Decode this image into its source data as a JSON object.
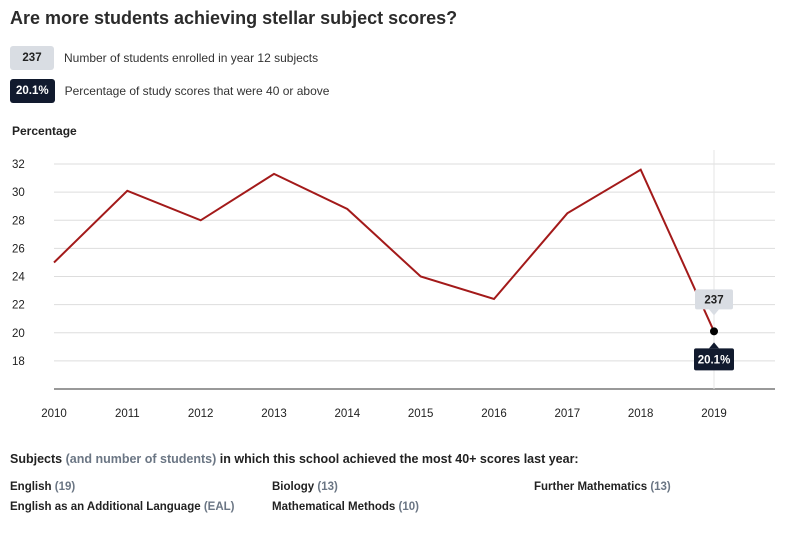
{
  "title": "Are more students achieving stellar subject scores?",
  "legend": {
    "students": {
      "badge": "237",
      "label": "Number of students enrolled in year 12 subjects"
    },
    "percentage": {
      "badge": "20.1%",
      "label": "Percentage of study scores that were 40 or above"
    }
  },
  "colors": {
    "line": "#a31a1a",
    "badge_light": "#d9dde3",
    "badge_dark": "#111a2e",
    "grid": "#dddddd"
  },
  "chart_data": {
    "type": "line",
    "ylabel": "Percentage",
    "x": [
      "2010",
      "2011",
      "2012",
      "2013",
      "2014",
      "2015",
      "2016",
      "2017",
      "2018",
      "2019"
    ],
    "series": [
      {
        "values": [
          25.0,
          30.1,
          28.0,
          31.3,
          28.8,
          24.0,
          22.4,
          28.5,
          31.6,
          20.1
        ]
      }
    ],
    "yticks": [
      18,
      20,
      22,
      24,
      26,
      28,
      30,
      32
    ],
    "ylim": [
      16,
      33
    ],
    "grid": true,
    "annotations": [
      {
        "x": "2019",
        "students": "237",
        "percentage": "20.1%"
      }
    ]
  },
  "subjects": {
    "heading_main": "Subjects",
    "heading_paren": "(and number of students)",
    "heading_rest": "in which this school achieved the most 40+ scores last year:",
    "items": [
      {
        "name": "English",
        "count": "(19)"
      },
      {
        "name": "English as an Additional Language",
        "count": "(EAL)"
      },
      {
        "name": "Biology",
        "count": "(13)"
      },
      {
        "name": "Mathematical Methods",
        "count": "(10)"
      },
      {
        "name": "Further Mathematics",
        "count": "(13)"
      }
    ]
  }
}
